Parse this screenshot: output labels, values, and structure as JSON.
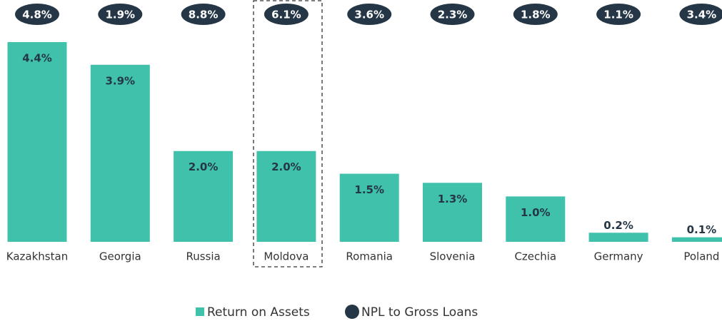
{
  "chart_data": {
    "type": "bar",
    "categories": [
      "Kazakhstan",
      "Georgia",
      "Russia",
      "Moldova",
      "Romania",
      "Slovenia",
      "Czechia",
      "Germany",
      "Poland"
    ],
    "series": [
      {
        "name": "Return on Assets",
        "color": "#40c1ac",
        "values": [
          4.4,
          3.9,
          2.0,
          2.0,
          1.5,
          1.3,
          1.0,
          0.2,
          0.1
        ],
        "value_labels": [
          "4.4%",
          "3.9%",
          "2.0%",
          "2.0%",
          "1.5%",
          "1.3%",
          "1.0%",
          "0.2%",
          "0.1%"
        ]
      },
      {
        "name": "NPL to Gross Loans",
        "color": "#253746",
        "values": [
          4.8,
          1.9,
          8.8,
          6.1,
          3.6,
          2.3,
          1.8,
          1.1,
          3.4
        ],
        "value_labels": [
          "4.8%",
          "1.9%",
          "8.8%",
          "6.1%",
          "3.6%",
          "2.3%",
          "1.8%",
          "1.1%",
          "3.4%"
        ]
      }
    ]
  }
}
